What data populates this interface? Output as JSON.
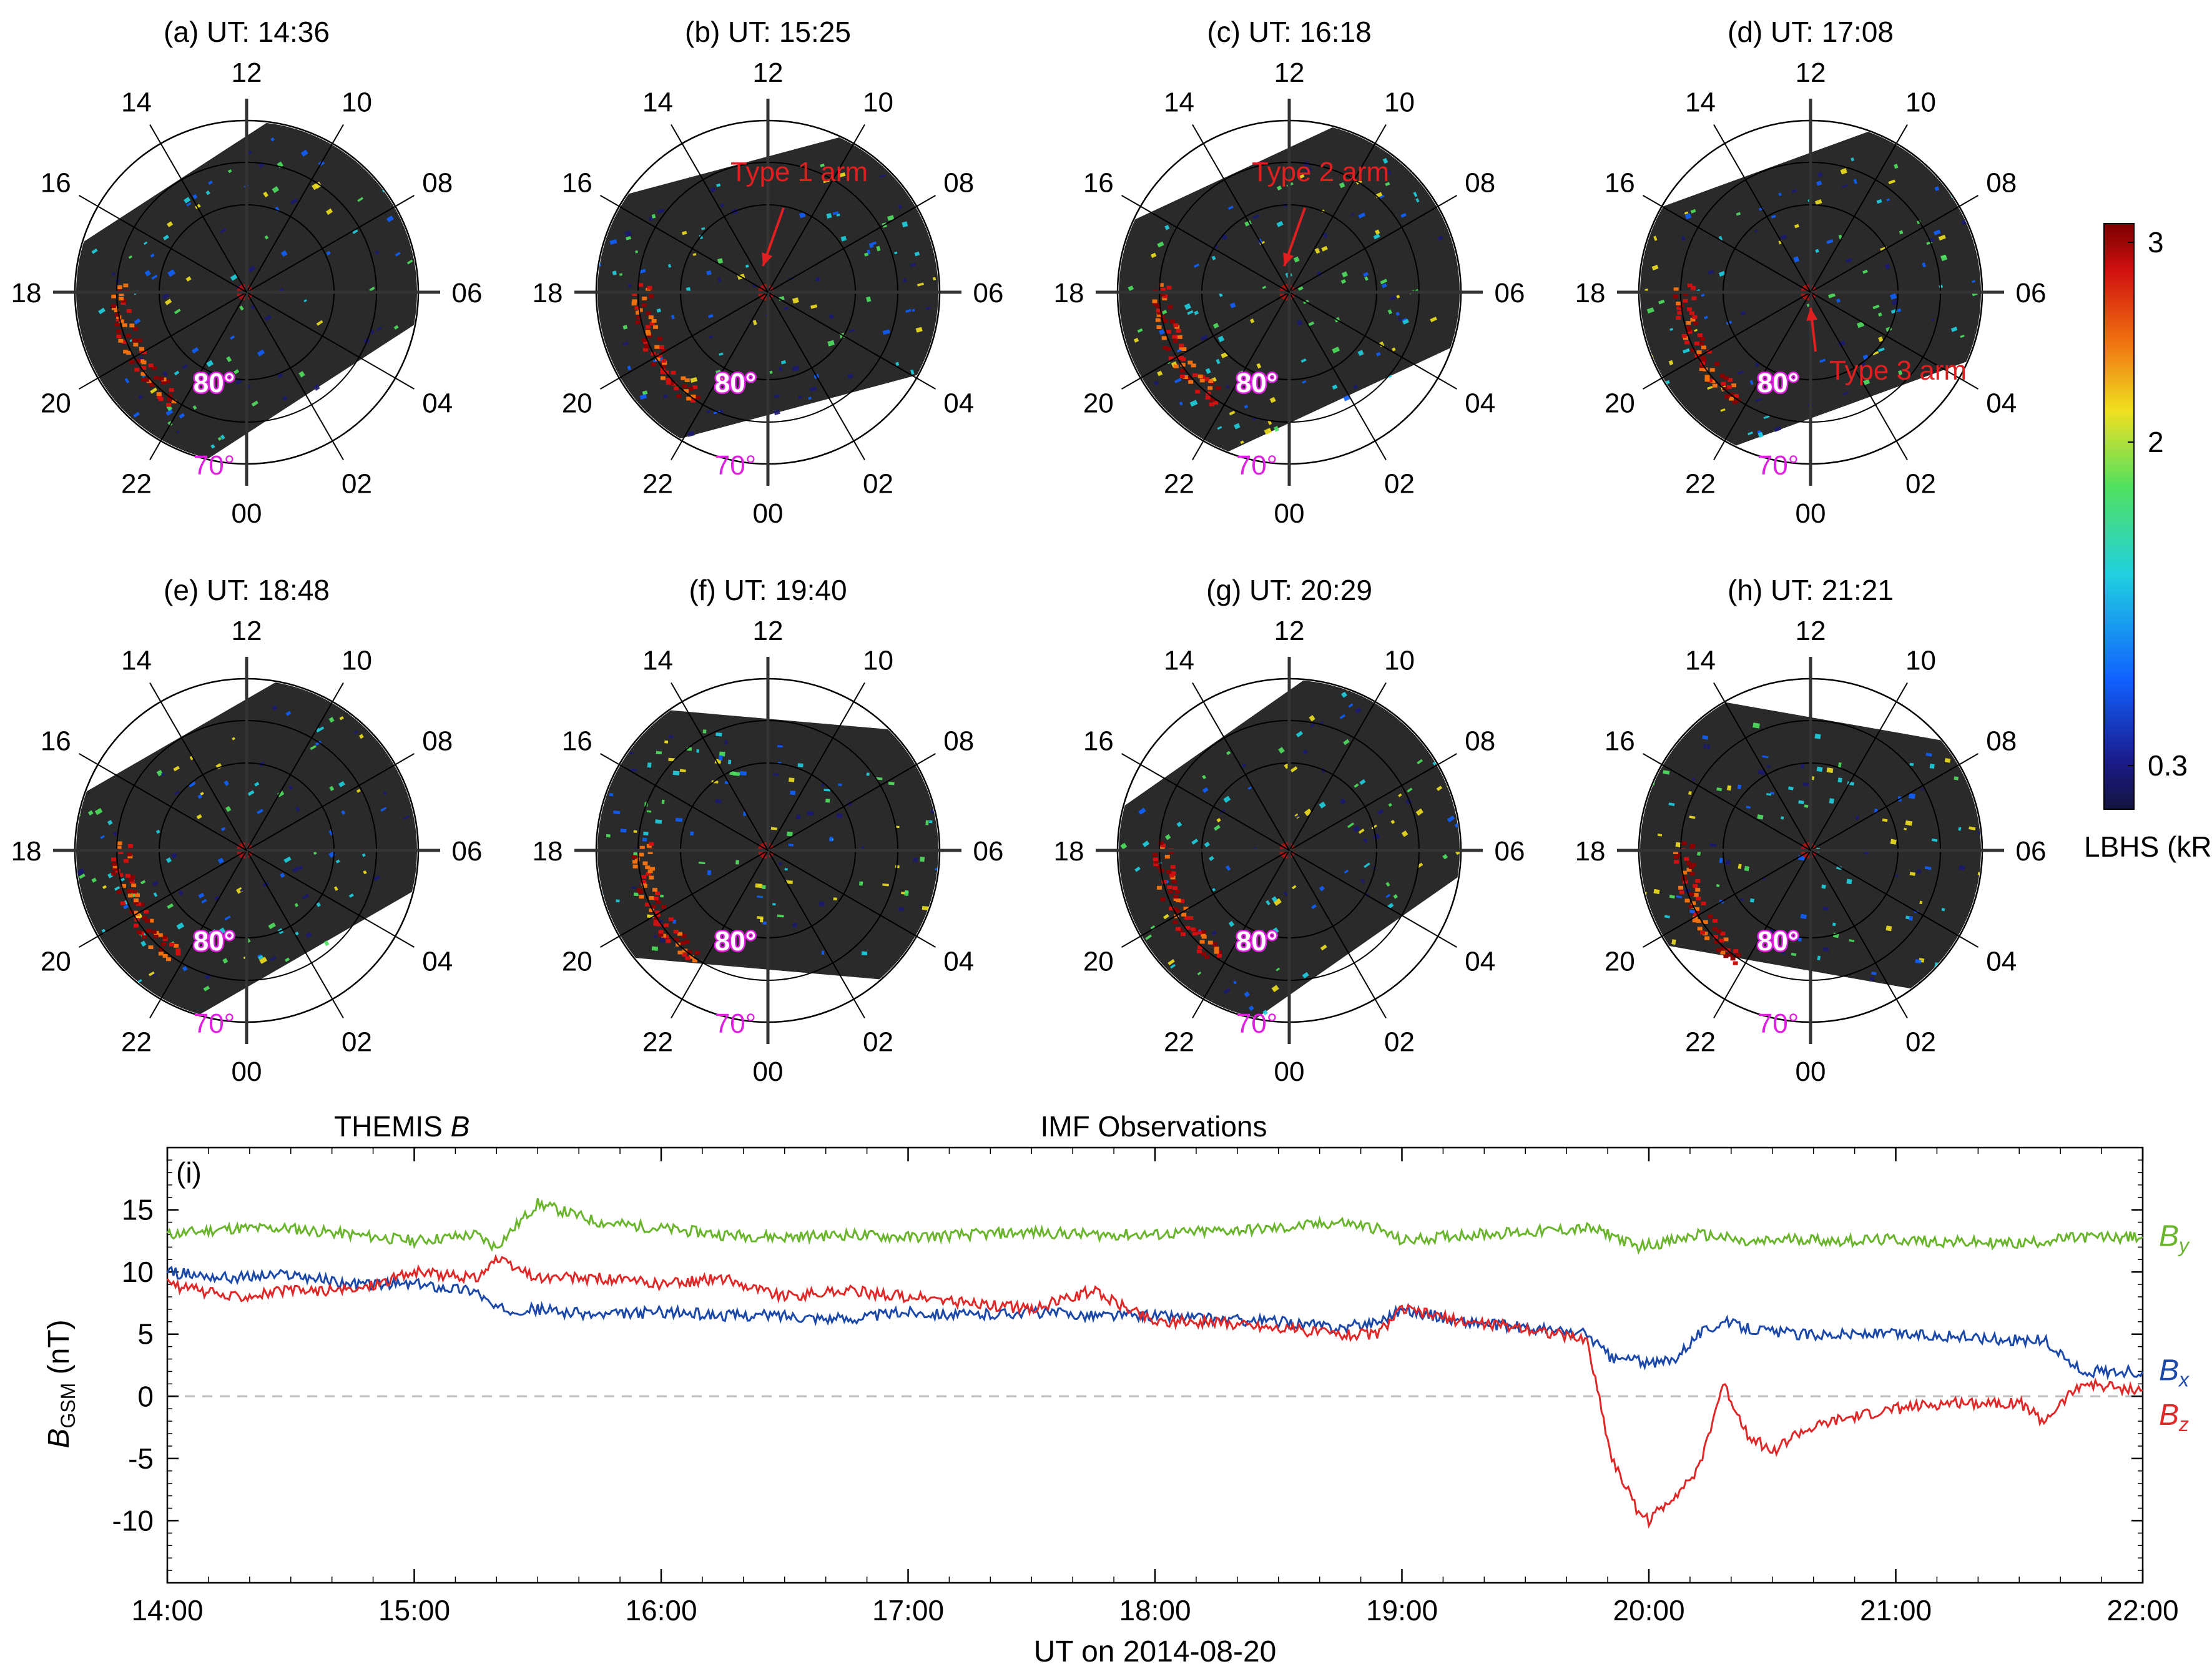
{
  "polar": {
    "hour_labels": [
      "12",
      "10",
      "08",
      "06",
      "04",
      "02",
      "00",
      "22",
      "20",
      "18",
      "16",
      "14"
    ],
    "lat_labels": [
      "80°",
      "70°"
    ],
    "lat_color": "#e020e0",
    "panels": [
      {
        "title": "(a) UT: 14:36",
        "annotation": "",
        "swath_angle_deg": -33
      },
      {
        "title": "(b) UT: 15:25",
        "annotation": "Type 1 arm",
        "swath_angle_deg": -15
      },
      {
        "title": "(c) UT: 16:18",
        "annotation": "Type 2 arm",
        "swath_angle_deg": -25
      },
      {
        "title": "(d) UT: 17:08",
        "annotation": "Type 3 arm",
        "swath_angle_deg": -20
      },
      {
        "title": "(e) UT: 18:48",
        "annotation": "",
        "swath_angle_deg": -30
      },
      {
        "title": "(f) UT: 19:40",
        "annotation": "",
        "swath_angle_deg": 5
      },
      {
        "title": "(g) UT: 20:29",
        "annotation": "",
        "swath_angle_deg": -35
      },
      {
        "title": "(h) UT: 21:21",
        "annotation": "",
        "swath_angle_deg": 10
      }
    ]
  },
  "colorbar": {
    "ticks": [
      "3",
      "2",
      "0.3"
    ],
    "label": "LBHS (kR)",
    "colors": [
      "#1a1a6e",
      "#1060ff",
      "#20d0e0",
      "#50e060",
      "#f0e020",
      "#f07010",
      "#d01010",
      "#8a0000"
    ]
  },
  "line_panel": {
    "top_labels": {
      "themis": "THEMIS",
      "themis_italic": "B",
      "imf": "IMF  Observations"
    },
    "panel_label": "(i)",
    "ylabel_main": "B",
    "ylabel_sub": "GSM",
    "ylabel_unit": " (nT)",
    "xlabel": "UT  on  2014-08-20",
    "series_labels": [
      {
        "main": "B",
        "sub": "y",
        "color": "#6ab42e"
      },
      {
        "main": "B",
        "sub": "x",
        "color": "#1c48a8"
      },
      {
        "main": "B",
        "sub": "z",
        "color": "#e02828"
      }
    ]
  },
  "chart_data": {
    "type": "line",
    "title": "IMF  Observations",
    "xlabel": "UT  on  2014-08-20",
    "ylabel": "BGSM (nT)",
    "x_ticks": [
      "14:00",
      "15:00",
      "16:00",
      "17:00",
      "18:00",
      "19:00",
      "20:00",
      "21:00",
      "22:00"
    ],
    "xlim": [
      14.0,
      22.0
    ],
    "ylim": [
      -15,
      20
    ],
    "y_ticks": [
      15,
      10,
      5,
      0,
      -5,
      -10
    ],
    "zero_line": true,
    "x": [
      14.0,
      14.25,
      14.5,
      14.75,
      15.0,
      15.25,
      15.33,
      15.5,
      15.75,
      16.0,
      16.25,
      16.5,
      16.75,
      17.0,
      17.25,
      17.5,
      17.75,
      18.0,
      18.25,
      18.5,
      18.75,
      18.9,
      19.0,
      19.25,
      19.5,
      19.75,
      19.85,
      19.95,
      20.0,
      20.1,
      20.2,
      20.3,
      20.4,
      20.5,
      20.6,
      20.75,
      21.0,
      21.25,
      21.5,
      21.6,
      21.75,
      22.0
    ],
    "series": [
      {
        "name": "By",
        "color": "#6ab42e",
        "values": [
          13,
          13.5,
          13.5,
          13,
          12.5,
          13,
          12,
          15.5,
          14,
          13.5,
          13,
          12.8,
          13,
          12.8,
          13,
          13.2,
          13,
          13,
          13.3,
          13.5,
          14,
          13.5,
          12.5,
          13,
          13.2,
          13.5,
          13,
          12,
          12.2,
          12.5,
          13,
          12.8,
          12.3,
          12.5,
          12.7,
          12.5,
          12.6,
          12.4,
          12.3,
          12.5,
          12.8,
          12.8
        ]
      },
      {
        "name": "Bx",
        "color": "#1c48a8",
        "values": [
          10,
          9.5,
          9.8,
          9,
          9,
          8.5,
          7,
          7,
          6.5,
          6.8,
          6.5,
          6.5,
          6.2,
          6.8,
          6.5,
          6.8,
          6.5,
          6.5,
          6.2,
          6,
          5.5,
          6,
          7,
          6,
          5.5,
          5,
          3,
          3,
          2.5,
          3,
          5,
          6,
          5.5,
          5.2,
          5,
          5,
          5,
          4.8,
          4.5,
          4.5,
          2,
          2
        ]
      },
      {
        "name": "Bz",
        "color": "#e02828",
        "values": [
          9,
          8,
          8.5,
          8.5,
          10,
          9.5,
          11,
          9.5,
          9.5,
          9,
          9.5,
          8,
          8.5,
          8,
          7.5,
          7,
          8.5,
          6,
          6,
          5.5,
          5,
          5,
          7,
          6,
          5.5,
          4.5,
          -5,
          -9,
          -10,
          -8,
          -6,
          1,
          -3,
          -4.5,
          -3,
          -2,
          -1,
          -0.5,
          -0.5,
          -2,
          1,
          0.5
        ]
      }
    ]
  }
}
